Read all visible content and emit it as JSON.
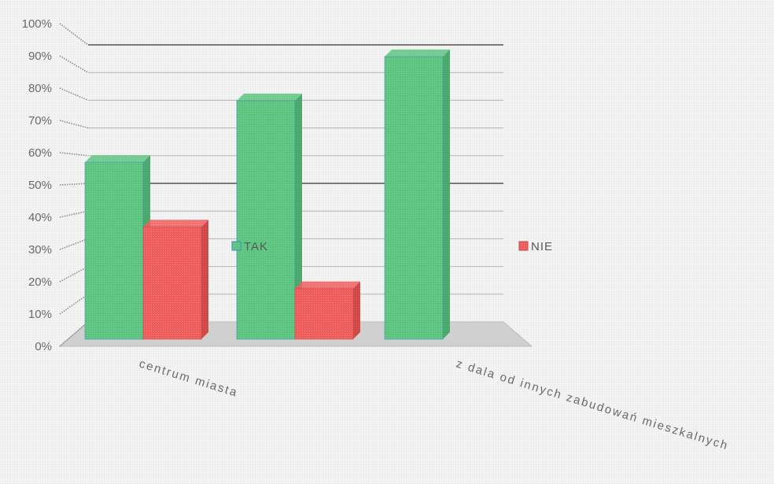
{
  "chart_data": {
    "type": "bar",
    "title": "",
    "xlabel": "",
    "ylabel": "",
    "ylim": [
      0,
      100
    ],
    "y_ticks": [
      "0%",
      "10%",
      "20%",
      "30%",
      "40%",
      "50%",
      "60%",
      "70%",
      "80%",
      "90%",
      "100%"
    ],
    "categories": [
      "centrum miasta",
      "",
      "z dala od innych zabudowań mieszkalnych"
    ],
    "series": [
      {
        "name": "TAK",
        "color": "#5cc47f",
        "values": [
          60,
          81,
          96
        ]
      },
      {
        "name": "NIE",
        "color": "#ee5c5c",
        "values": [
          38,
          17,
          0
        ]
      }
    ],
    "grid": true,
    "legend": "middle"
  }
}
